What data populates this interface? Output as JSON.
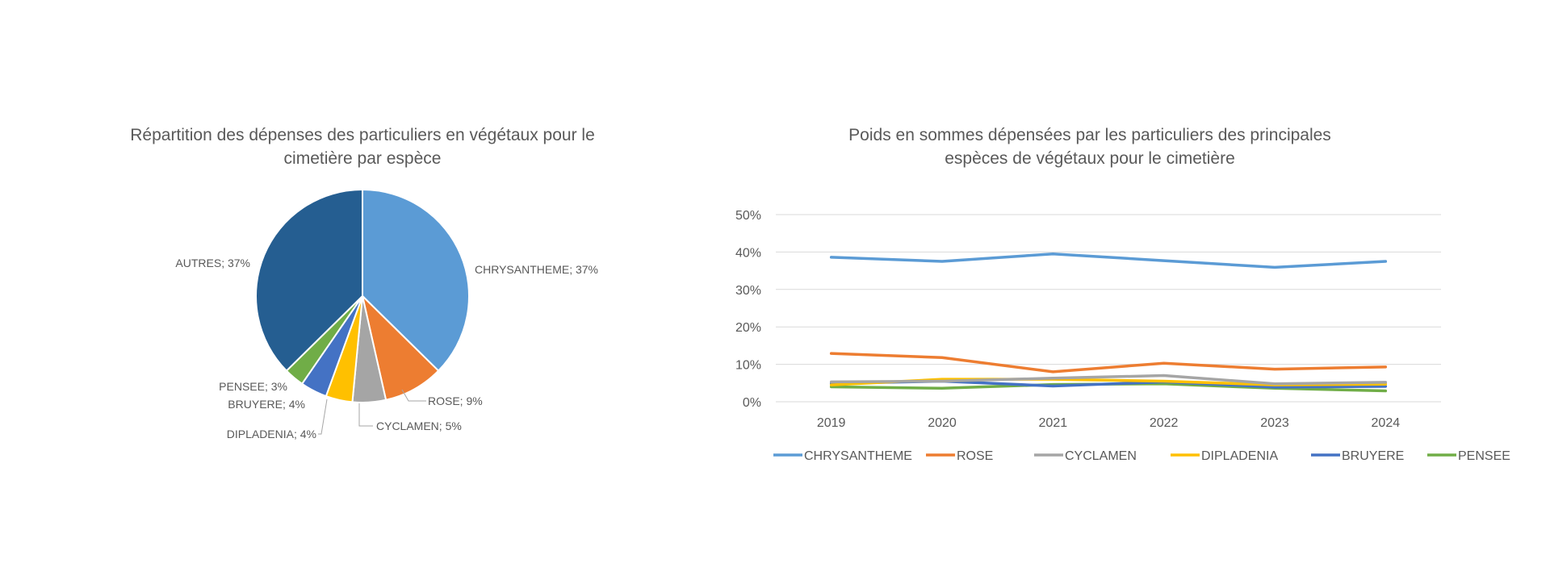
{
  "chart_data": [
    {
      "type": "pie",
      "title_lines": [
        "Répartition des dépenses des particuliers en végétaux pour le",
        "cimetière par espèce"
      ],
      "slices": [
        {
          "label": "CHRYSANTHEME",
          "value": 37,
          "text": "CHRYSANTHEME; 37%",
          "color": "#5B9BD5"
        },
        {
          "label": "ROSE",
          "value": 9,
          "text": "ROSE; 9%",
          "color": "#ED7D31"
        },
        {
          "label": "CYCLAMEN",
          "value": 5,
          "text": "CYCLAMEN; 5%",
          "color": "#A5A5A5"
        },
        {
          "label": "DIPLADENIA",
          "value": 4,
          "text": "DIPLADENIA; 4%",
          "color": "#FFC000"
        },
        {
          "label": "BRUYERE",
          "value": 4,
          "text": "BRUYERE; 4%",
          "color": "#4472C4"
        },
        {
          "label": "PENSEE",
          "value": 3,
          "text": "PENSEE; 3%",
          "color": "#70AD47"
        },
        {
          "label": "AUTRES",
          "value": 37,
          "text": "AUTRES; 37%",
          "color": "#255E91"
        }
      ]
    },
    {
      "type": "line",
      "title_lines": [
        "Poids en sommes dépensées par les particuliers des principales",
        "espèces de végétaux pour le cimetière"
      ],
      "categories": [
        "2019",
        "2020",
        "2021",
        "2022",
        "2023",
        "2024"
      ],
      "ylim": [
        0,
        50
      ],
      "yticks": [
        "0%",
        "10%",
        "20%",
        "30%",
        "40%",
        "50%"
      ],
      "grid": true,
      "legend": "bottom",
      "series": [
        {
          "name": "CHRYSANTHEME",
          "color": "#5B9BD5",
          "values": [
            38.6,
            37.5,
            39.5,
            37.7,
            35.9,
            37.5
          ]
        },
        {
          "name": "ROSE",
          "color": "#ED7D31",
          "values": [
            12.9,
            11.8,
            8.0,
            10.3,
            8.7,
            9.3
          ]
        },
        {
          "name": "CYCLAMEN",
          "color": "#A5A5A5",
          "values": [
            5.3,
            5.5,
            6.3,
            7.0,
            4.8,
            5.2
          ]
        },
        {
          "name": "DIPLADENIA",
          "color": "#FFC000",
          "values": [
            4.5,
            6.0,
            6.0,
            5.5,
            4.5,
            4.7
          ]
        },
        {
          "name": "BRUYERE",
          "color": "#4472C4",
          "values": [
            4.9,
            5.5,
            4.2,
            5.3,
            3.9,
            4.1
          ]
        },
        {
          "name": "PENSEE",
          "color": "#70AD47",
          "values": [
            4.0,
            3.6,
            4.6,
            4.8,
            3.6,
            2.9
          ]
        }
      ]
    }
  ]
}
